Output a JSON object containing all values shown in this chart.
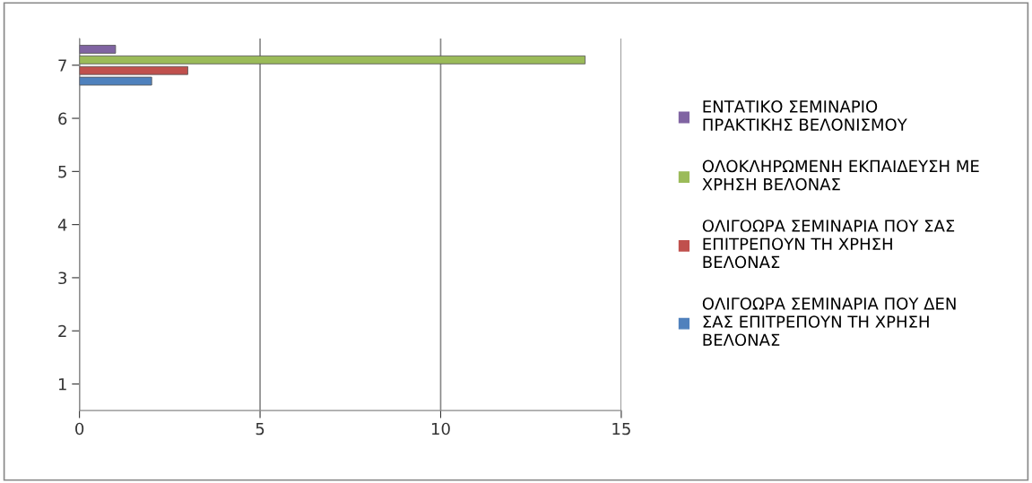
{
  "chart_data": {
    "type": "bar",
    "orientation": "horizontal",
    "categories": [
      "7",
      "6",
      "5",
      "4",
      "3",
      "2",
      "1"
    ],
    "series": [
      {
        "name": "ΟΛΙΓΟΩΡΑ ΣΕΜΙΝΑΡΙΑ ΠΟΥ ΔΕΝ ΣΑΣ ΕΠΙΤΡΕΠΟΥΝ ΤΗ ΧΡΗΣΗ ΒΕΛΟΝΑΣ",
        "color": "#4f81bd",
        "values": [
          2,
          null,
          null,
          null,
          null,
          null,
          null
        ]
      },
      {
        "name": "ΟΛΙΓΟΩΡΑ ΣΕΜΙΝΑΡΙΑ ΠΟΥ ΣΑΣ ΕΠΙΤΡΕΠΟΥΝ ΤΗ ΧΡΗΣΗ ΒΕΛΟΝΑΣ",
        "color": "#c0504d",
        "values": [
          3,
          null,
          null,
          null,
          null,
          null,
          null
        ]
      },
      {
        "name": "ΟΛΟΚΛΗΡΩΜΕΝΗ ΕΚΠΑΙΔΕΥΣΗ ΜΕ ΧΡΗΣΗ ΒΕΛΟΝΑΣ",
        "color": "#9bbb59",
        "values": [
          14,
          null,
          null,
          null,
          null,
          null,
          null
        ]
      },
      {
        "name": "ΕΝΤΑΤΙΚΟ ΣΕΜΙΝΑΡΙΟ ΠΡΑΚΤΙΚΗΣ ΒΕΛΟΝΙΣΜΟΥ",
        "color": "#8064a2",
        "values": [
          1,
          null,
          null,
          null,
          null,
          null,
          null
        ]
      }
    ],
    "xlim": [
      0,
      15
    ],
    "xticks": [
      0,
      5,
      10,
      15
    ],
    "grid": "x",
    "legend": "right"
  }
}
